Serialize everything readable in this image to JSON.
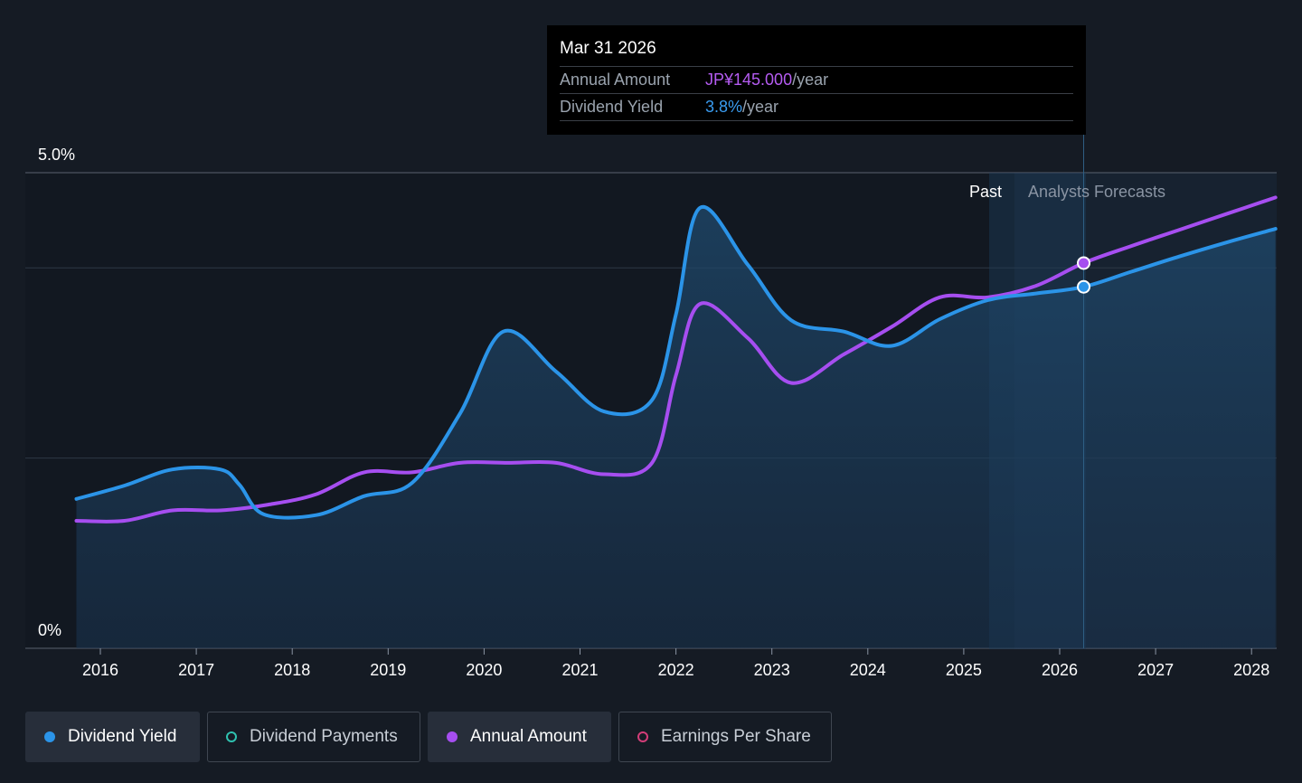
{
  "chart_data": {
    "type": "line",
    "y_axis": {
      "tick_labels": [
        "5.0%",
        "0%"
      ],
      "ylim": [
        0,
        5.0
      ],
      "grid": true
    },
    "x_axis": {
      "tick_labels": [
        "2016",
        "2017",
        "2018",
        "2019",
        "2020",
        "2021",
        "2022",
        "2023",
        "2024",
        "2025",
        "2026",
        "2027",
        "2028"
      ]
    },
    "past_label": "Past",
    "forecast_label": "Analysts Forecasts",
    "series": [
      {
        "name": "Dividend Yield",
        "color": "#2b94e8",
        "points": [
          [
            2015.75,
            1.57
          ],
          [
            2016.25,
            1.71
          ],
          [
            2016.75,
            1.88
          ],
          [
            2017.25,
            1.88
          ],
          [
            2017.45,
            1.72
          ],
          [
            2017.7,
            1.41
          ],
          [
            2018.25,
            1.4
          ],
          [
            2018.75,
            1.6
          ],
          [
            2019.25,
            1.74
          ],
          [
            2019.75,
            2.47
          ],
          [
            2020.2,
            3.33
          ],
          [
            2020.75,
            2.91
          ],
          [
            2021.25,
            2.49
          ],
          [
            2021.75,
            2.61
          ],
          [
            2022.0,
            3.51
          ],
          [
            2022.25,
            4.63
          ],
          [
            2022.75,
            4.03
          ],
          [
            2023.2,
            3.45
          ],
          [
            2023.75,
            3.33
          ],
          [
            2024.25,
            3.18
          ],
          [
            2024.75,
            3.46
          ],
          [
            2025.25,
            3.66
          ],
          [
            2025.75,
            3.73
          ],
          [
            2026.25,
            3.8
          ],
          [
            2026.75,
            3.96
          ],
          [
            2027.25,
            4.12
          ],
          [
            2027.75,
            4.27
          ],
          [
            2028.25,
            4.41
          ]
        ]
      },
      {
        "name": "Annual Amount",
        "color": "#a64ef0",
        "points": [
          [
            2015.75,
            1.34
          ],
          [
            2016.25,
            1.34
          ],
          [
            2016.75,
            1.45
          ],
          [
            2017.25,
            1.45
          ],
          [
            2017.75,
            1.51
          ],
          [
            2018.25,
            1.62
          ],
          [
            2018.75,
            1.85
          ],
          [
            2019.25,
            1.85
          ],
          [
            2019.75,
            1.95
          ],
          [
            2020.25,
            1.95
          ],
          [
            2020.75,
            1.95
          ],
          [
            2021.25,
            1.83
          ],
          [
            2021.75,
            1.95
          ],
          [
            2022.0,
            2.87
          ],
          [
            2022.25,
            3.62
          ],
          [
            2022.75,
            3.26
          ],
          [
            2023.2,
            2.79
          ],
          [
            2023.75,
            3.09
          ],
          [
            2024.25,
            3.38
          ],
          [
            2024.75,
            3.69
          ],
          [
            2025.25,
            3.69
          ],
          [
            2025.75,
            3.81
          ],
          [
            2026.25,
            4.05
          ],
          [
            2026.75,
            4.23
          ],
          [
            2027.25,
            4.4
          ],
          [
            2027.75,
            4.57
          ],
          [
            2028.25,
            4.74
          ]
        ]
      }
    ],
    "highlight_x": 2026.25
  },
  "tooltip": {
    "date": "Mar 31 2026",
    "annual_amount_label": "Annual Amount",
    "annual_amount_value": "JP¥145.000",
    "annual_amount_unit": "/year",
    "dividend_yield_label": "Dividend Yield",
    "dividend_yield_value": "3.8%",
    "dividend_yield_unit": "/year"
  },
  "legend": [
    {
      "label": "Dividend Yield",
      "color": "#2b94e8",
      "style": "filled",
      "active": true
    },
    {
      "label": "Dividend Payments",
      "color": "#2fc2b0",
      "style": "outline",
      "active": false
    },
    {
      "label": "Annual Amount",
      "color": "#a64ef0",
      "style": "filled",
      "active": true
    },
    {
      "label": "Earnings Per Share",
      "color": "#d23d78",
      "style": "outline",
      "active": false
    }
  ]
}
